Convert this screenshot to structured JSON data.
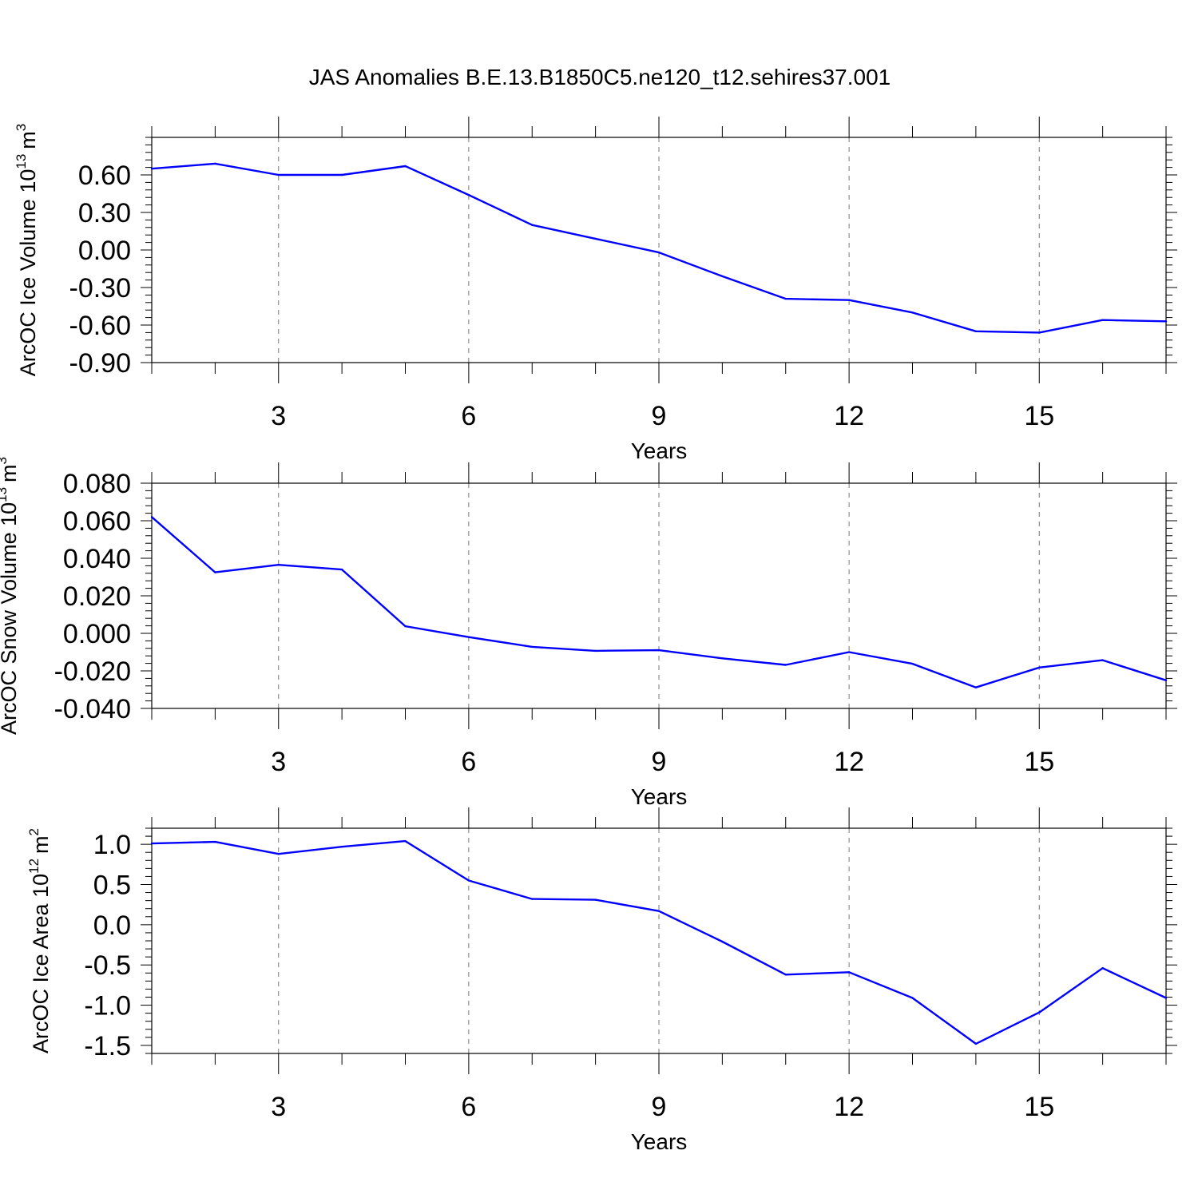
{
  "title": "JAS Anomalies B.E.13.B1850C5.ne120_t12.sehires37.001",
  "line_color": "#0000ff",
  "chart_data": [
    {
      "type": "line",
      "ylabel": "ArcOC Ice Volume 10",
      "ylabel_exp": "13",
      "ylabel_unit": "m",
      "ylabel_unit_exp": "3",
      "xlabel": "Years",
      "xlim": [
        1,
        17
      ],
      "ylim": [
        -0.9,
        0.9
      ],
      "x_ticks": [
        3,
        6,
        9,
        12,
        15
      ],
      "x_tick_labels": [
        "3",
        "6",
        "9",
        "12",
        "15"
      ],
      "y_ticks": [
        -0.9,
        -0.6,
        -0.3,
        0.0,
        0.3,
        0.6
      ],
      "y_tick_labels": [
        "-0.90",
        "-0.60",
        "-0.30",
        "0.00",
        "0.30",
        "0.60"
      ],
      "grid": "dashed vertical lines at major x ticks",
      "x": [
        1,
        2,
        3,
        4,
        5,
        6,
        7,
        8,
        9,
        10,
        11,
        12,
        13,
        14,
        15,
        16,
        17
      ],
      "values": [
        0.65,
        0.69,
        0.6,
        0.6,
        0.67,
        0.44,
        0.2,
        0.09,
        -0.02,
        -0.21,
        -0.39,
        -0.4,
        -0.5,
        -0.65,
        -0.66,
        -0.56,
        -0.57
      ]
    },
    {
      "type": "line",
      "ylabel": "ArcOC Snow Volume 10",
      "ylabel_exp": "13",
      "ylabel_unit": "m",
      "ylabel_unit_exp": "3",
      "xlabel": "Years",
      "xlim": [
        1,
        17
      ],
      "ylim": [
        -0.04,
        0.08
      ],
      "x_ticks": [
        3,
        6,
        9,
        12,
        15
      ],
      "x_tick_labels": [
        "3",
        "6",
        "9",
        "12",
        "15"
      ],
      "y_ticks": [
        -0.04,
        -0.02,
        0.0,
        0.02,
        0.04,
        0.06,
        0.08
      ],
      "y_tick_labels": [
        "-0.040",
        "-0.020",
        "0.000",
        "0.020",
        "0.040",
        "0.060",
        "0.080"
      ],
      "grid": "dashed vertical lines at major x ticks",
      "x": [
        1,
        2,
        3,
        4,
        5,
        6,
        7,
        8,
        9,
        10,
        11,
        12,
        13,
        14,
        15,
        16,
        17
      ],
      "values": [
        0.062,
        0.0325,
        0.0365,
        0.034,
        0.0038,
        -0.002,
        -0.0072,
        -0.0093,
        -0.009,
        -0.0133,
        -0.0168,
        -0.01,
        -0.0162,
        -0.0288,
        -0.0182,
        -0.0143,
        -0.025
      ]
    },
    {
      "type": "line",
      "ylabel": "ArcOC Ice Area 10",
      "ylabel_exp": "12",
      "ylabel_unit": "m",
      "ylabel_unit_exp": "2",
      "xlabel": "Years",
      "xlim": [
        1,
        17
      ],
      "ylim": [
        -1.6,
        1.2
      ],
      "x_ticks": [
        3,
        6,
        9,
        12,
        15
      ],
      "x_tick_labels": [
        "3",
        "6",
        "9",
        "12",
        "15"
      ],
      "y_ticks": [
        -1.5,
        -1.0,
        -0.5,
        0.0,
        0.5,
        1.0
      ],
      "y_tick_labels": [
        "-1.5",
        "-1.0",
        "-0.5",
        "0.0",
        "0.5",
        "1.0"
      ],
      "grid": "dashed vertical lines at major x ticks",
      "x": [
        1,
        2,
        3,
        4,
        5,
        6,
        7,
        8,
        9,
        10,
        11,
        12,
        13,
        14,
        15,
        16,
        17
      ],
      "values": [
        1.01,
        1.03,
        0.88,
        0.97,
        1.04,
        0.55,
        0.32,
        0.31,
        0.17,
        -0.21,
        -0.62,
        -0.59,
        -0.91,
        -1.48,
        -1.09,
        -0.54,
        -0.91
      ]
    }
  ]
}
